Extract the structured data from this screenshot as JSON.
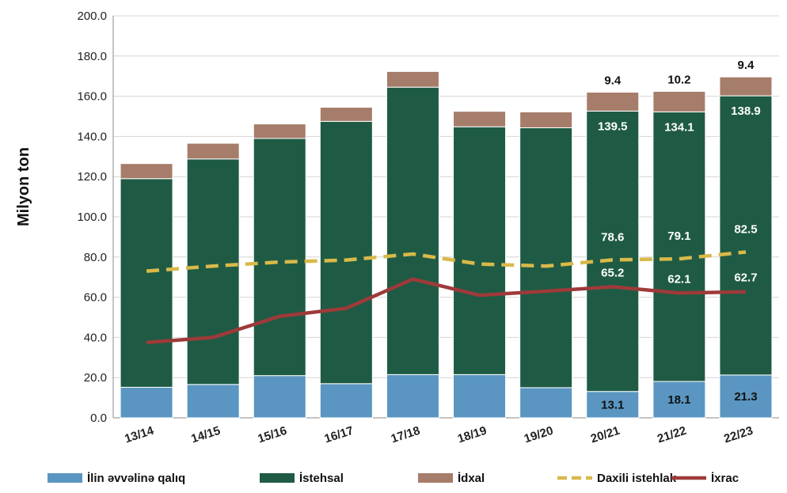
{
  "chart_data": {
    "type": "bar",
    "stacked": true,
    "ylabel": "Milyon ton",
    "xlabel": "",
    "ylim": [
      0,
      200
    ],
    "yticks": [
      "0.0",
      "20.0",
      "40.0",
      "60.0",
      "80.0",
      "100.0",
      "120.0",
      "140.0",
      "160.0",
      "180.0",
      "200.0"
    ],
    "grid": "horizontal",
    "legend_position": "bottom",
    "categories": [
      "13/14",
      "14/15",
      "15/16",
      "16/17",
      "17/18",
      "18/19",
      "19/20",
      "20/21",
      "21/22",
      "22/23"
    ],
    "series": [
      {
        "name": "İlin əvvəlinə qalıq",
        "kind": "bar",
        "color": "#5a96c1",
        "values": [
          15.2,
          16.6,
          21.0,
          17.0,
          21.5,
          21.5,
          15.0,
          13.1,
          18.1,
          21.3
        ]
      },
      {
        "name": "İstehsal",
        "kind": "bar",
        "color": "#1f5b44",
        "values": [
          103.8,
          112.2,
          118.0,
          130.5,
          143.0,
          123.3,
          129.3,
          139.5,
          134.1,
          138.9
        ]
      },
      {
        "name": "İdxal",
        "kind": "bar",
        "color": "#a67c6a",
        "values": [
          7.5,
          7.8,
          7.2,
          7.0,
          7.8,
          7.7,
          7.9,
          9.4,
          10.2,
          9.4
        ]
      },
      {
        "name": "Daxili istehlak",
        "kind": "line",
        "style": "dashed",
        "color": "#d9b94a",
        "values": [
          73.0,
          75.5,
          77.5,
          78.5,
          81.5,
          76.5,
          75.5,
          78.6,
          79.1,
          82.5
        ]
      },
      {
        "name": "İxrac",
        "kind": "line",
        "style": "solid",
        "color": "#9e3a3a",
        "values": [
          37.5,
          40.0,
          50.5,
          54.5,
          69.0,
          61.0,
          63.0,
          65.2,
          62.1,
          62.7
        ]
      }
    ],
    "data_labels": [
      {
        "category": "20/21",
        "stock": "13.1",
        "production": "139.5",
        "import": "9.4",
        "consumption": "78.6",
        "export": "65.2"
      },
      {
        "category": "21/22",
        "stock": "18.1",
        "production": "134.1",
        "import": "10.2",
        "consumption": "79.1",
        "export": "62.1"
      },
      {
        "category": "22/23",
        "stock": "21.3",
        "production": "138.9",
        "import": "9.4",
        "consumption": "82.5",
        "export": "62.7"
      }
    ]
  }
}
